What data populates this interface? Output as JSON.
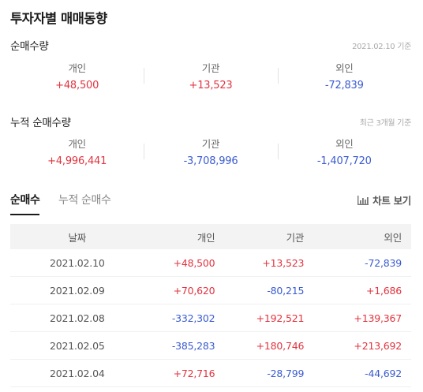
{
  "title": "투자자별 매매동향",
  "net_volume": {
    "title": "순매수량",
    "note": "2021.02.10 기준",
    "columns": [
      {
        "label": "개인",
        "value": "+48,500",
        "sign": "pos"
      },
      {
        "label": "기관",
        "value": "+13,523",
        "sign": "pos"
      },
      {
        "label": "외인",
        "value": "-72,839",
        "sign": "neg"
      }
    ]
  },
  "cumulative_volume": {
    "title": "누적 순매수량",
    "note": "최근 3개월 기준",
    "columns": [
      {
        "label": "개인",
        "value": "+4,996,441",
        "sign": "pos"
      },
      {
        "label": "기관",
        "value": "-3,708,996",
        "sign": "neg"
      },
      {
        "label": "외인",
        "value": "-1,407,720",
        "sign": "neg"
      }
    ]
  },
  "tabs": [
    {
      "label": "순매수",
      "active": true
    },
    {
      "label": "누적 순매수",
      "active": false
    }
  ],
  "chart_link": {
    "label": "차트 보기",
    "icon": "bar-chart-icon"
  },
  "colors": {
    "positive": "#e0343f",
    "negative": "#3a5bd0"
  },
  "table": {
    "headers": [
      "날짜",
      "개인",
      "기관",
      "외인"
    ],
    "rows": [
      [
        "2021.02.10",
        "+48,500",
        "+13,523",
        "-72,839"
      ],
      [
        "2021.02.09",
        "+70,620",
        "-80,215",
        "+1,686"
      ],
      [
        "2021.02.08",
        "-332,302",
        "+192,521",
        "+139,367"
      ],
      [
        "2021.02.05",
        "-385,283",
        "+180,746",
        "+213,692"
      ],
      [
        "2021.02.04",
        "+72,716",
        "-28,799",
        "-44,692"
      ]
    ]
  }
}
